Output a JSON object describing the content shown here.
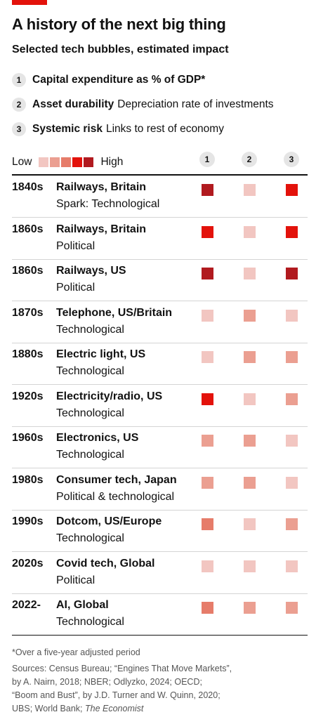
{
  "header": {
    "title": "A history of the next big thing",
    "subtitle": "Selected tech bubbles, estimated impact"
  },
  "key": [
    {
      "num": "1",
      "title": "Capital expenditure as % of GDP*",
      "desc": ""
    },
    {
      "num": "2",
      "title": "Asset durability",
      "desc": "Depreciation rate of investments"
    },
    {
      "num": "3",
      "title": "Systemic risk",
      "desc": "Links to rest of economy"
    }
  ],
  "legend": {
    "low": "Low",
    "high": "High",
    "colors": [
      "#f2c6c1",
      "#eb9f91",
      "#e67c6a",
      "#e3120b",
      "#b11a1f"
    ]
  },
  "chart_data": {
    "type": "table",
    "columns": [
      "1",
      "2",
      "3"
    ],
    "scale": "1 = Low ... 5 = High",
    "rows": [
      {
        "year": "1840s",
        "name": "Railways, Britain",
        "kind": "Spark: Technological",
        "values": [
          5,
          1,
          4
        ]
      },
      {
        "year": "1860s",
        "name": "Railways, Britain",
        "kind": "Political",
        "values": [
          4,
          1,
          4
        ]
      },
      {
        "year": "1860s",
        "name": "Railways, US",
        "kind": "Political",
        "values": [
          5,
          1,
          5
        ]
      },
      {
        "year": "1870s",
        "name": "Telephone, US/Britain",
        "kind": "Technological",
        "values": [
          1,
          2,
          1
        ]
      },
      {
        "year": "1880s",
        "name": "Electric light, US",
        "kind": "Technological",
        "values": [
          1,
          2,
          2
        ]
      },
      {
        "year": "1920s",
        "name": "Electricity/radio, US",
        "kind": "Technological",
        "values": [
          4,
          1,
          2
        ]
      },
      {
        "year": "1960s",
        "name": "Electronics, US",
        "kind": "Technological",
        "values": [
          2,
          2,
          1
        ]
      },
      {
        "year": "1980s",
        "name": "Consumer tech, Japan",
        "kind": "Political & technological",
        "values": [
          2,
          2,
          1
        ]
      },
      {
        "year": "1990s",
        "name": "Dotcom, US/Europe",
        "kind": "Technological",
        "values": [
          3,
          1,
          2
        ]
      },
      {
        "year": "2020s",
        "name": "Covid tech, Global",
        "kind": "Political",
        "values": [
          1,
          1,
          1
        ]
      },
      {
        "year": "2022-",
        "name": "AI, Global",
        "kind": "Technological",
        "values": [
          3,
          2,
          2
        ]
      }
    ]
  },
  "footnote": {
    "note": "*Over a five-year adjusted period",
    "sources_1": "Sources: Census Bureau; “Engines That Move Markets”,",
    "sources_2": "by A. Nairn, 2018; NBER; Odlyzko, 2024; OECD;",
    "sources_3": "“Boom and Bust”, by J.D. Turner and W. Quinn, 2020;",
    "sources_4": "UBS; World Bank;",
    "sources_4_italic": "The Economist"
  }
}
